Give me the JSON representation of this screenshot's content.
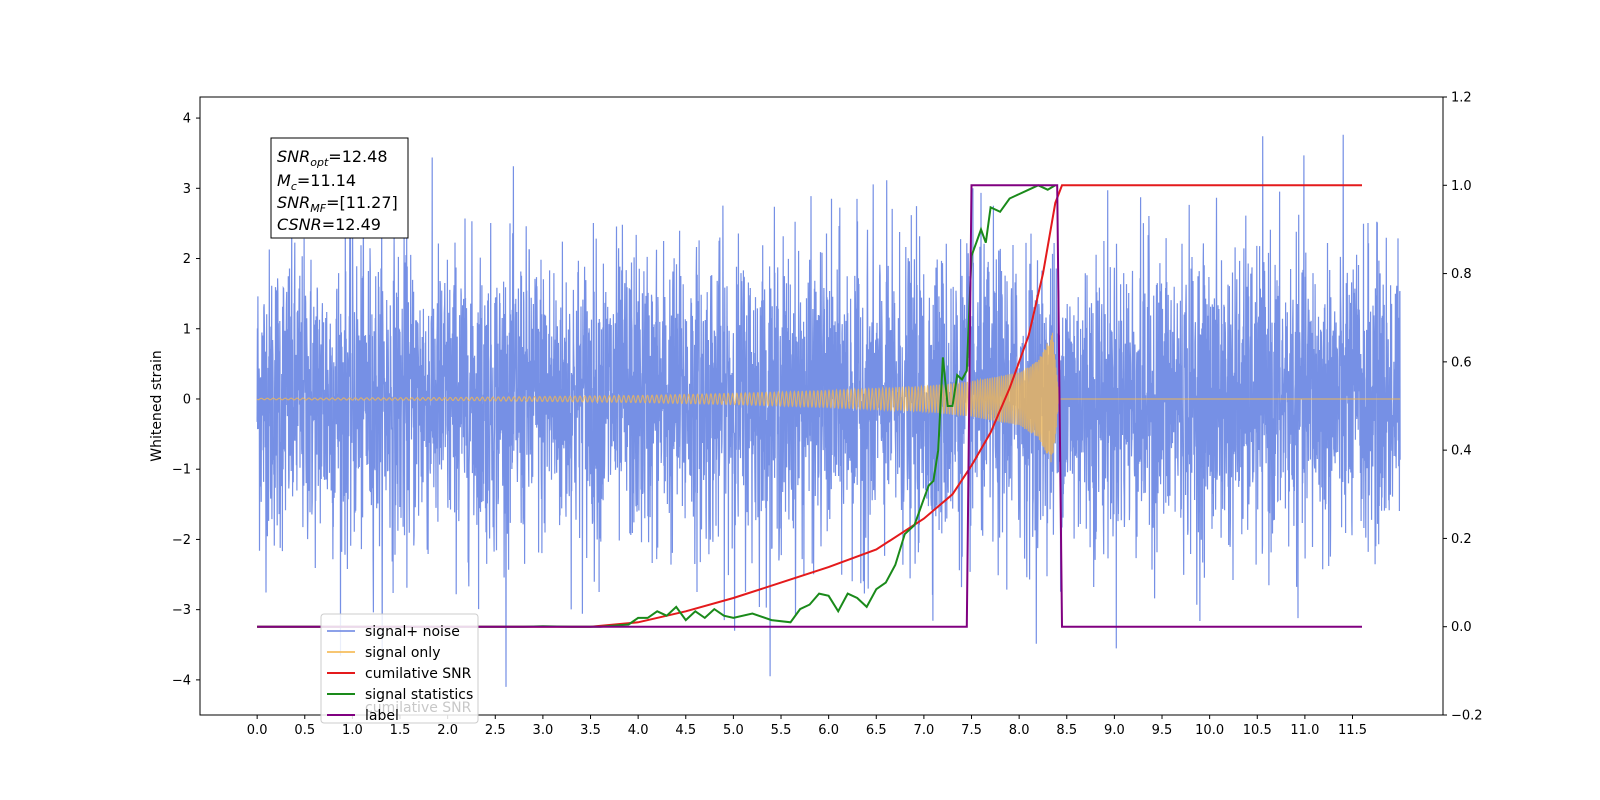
{
  "chart_data": {
    "type": "line",
    "ylabel_left": "Whitened strain",
    "xlim": [
      -0.6,
      12.45
    ],
    "ylim_left": [
      -4.5,
      4.3
    ],
    "ylim_right": [
      -0.2,
      1.2
    ],
    "xticks": [
      "0.0",
      "0.5",
      "1.0",
      "1.5",
      "2.0",
      "2.5",
      "3.0",
      "3.5",
      "4.0",
      "4.5",
      "5.0",
      "5.5",
      "6.0",
      "6.5",
      "7.0",
      "7.5",
      "8.0",
      "8.5",
      "9.0",
      "9.5",
      "10.0",
      "10.5",
      "11.0",
      "11.5"
    ],
    "yticks_left": [
      "4",
      "3",
      "2",
      "1",
      "0",
      "−1",
      "−2",
      "−3",
      "−4"
    ],
    "yticks_right": [
      "1.2",
      "1.0",
      "0.8",
      "0.6",
      "0.4",
      "0.2",
      "0.0",
      "−0.2"
    ],
    "grid": false,
    "legend_position": "lower-left",
    "annotation": {
      "snr_opt_base": "SNR",
      "snr_opt_sub": "opt",
      "snr_opt_value": "=12.48",
      "mc_base": "M",
      "mc_sub": "c",
      "mc_value": "=11.14",
      "snr_mf_base": "SNR",
      "snr_mf_sub": "MF",
      "snr_mf_value": "=[11.27]",
      "csnr_base": "CSNR",
      "csnr_value": "=12.49"
    },
    "series": [
      {
        "name": "signal+ noise",
        "axis": "left",
        "color": "#6f8ae4",
        "description_values": "white noise, std ~1.0, x from 0.0 to 12.0, with spikes up to ~3.9"
      },
      {
        "name": "signal only",
        "axis": "left",
        "color": "#f5b84f",
        "envelope": {
          "x": [
            0.0,
            2.0,
            4.0,
            5.0,
            6.0,
            7.0,
            7.5,
            8.0,
            8.2,
            8.35,
            8.42
          ],
          "amp": [
            0.01,
            0.02,
            0.05,
            0.08,
            0.12,
            0.18,
            0.25,
            0.38,
            0.55,
            0.95,
            0.0
          ]
        }
      },
      {
        "name": "cumilative SNR",
        "axis": "right",
        "color": "#e41a1c",
        "x": [
          0.0,
          3.5,
          4.0,
          4.5,
          5.0,
          5.5,
          6.0,
          6.5,
          7.0,
          7.3,
          7.5,
          7.7,
          7.9,
          8.1,
          8.25,
          8.38,
          8.45,
          11.6
        ],
        "values": [
          0.0,
          0.0,
          0.01,
          0.035,
          0.065,
          0.1,
          0.135,
          0.175,
          0.245,
          0.3,
          0.365,
          0.44,
          0.54,
          0.66,
          0.8,
          0.96,
          1.0,
          1.0
        ]
      },
      {
        "name": "signal statistics",
        "axis": "right",
        "color": "#1a8a1a",
        "x": [
          0.0,
          2.5,
          2.8,
          3.0,
          3.3,
          3.6,
          3.9,
          4.0,
          4.1,
          4.2,
          4.3,
          4.4,
          4.5,
          4.6,
          4.7,
          4.8,
          4.9,
          5.0,
          5.2,
          5.4,
          5.6,
          5.7,
          5.8,
          5.9,
          6.0,
          6.1,
          6.2,
          6.3,
          6.4,
          6.5,
          6.6,
          6.7,
          6.8,
          6.9,
          7.0,
          7.05,
          7.1,
          7.15,
          7.2,
          7.25,
          7.3,
          7.35,
          7.4,
          7.45,
          7.5,
          7.55,
          7.6,
          7.65,
          7.7,
          7.8,
          7.9,
          8.0,
          8.1,
          8.2,
          8.3,
          8.38
        ],
        "values": [
          0.0,
          0.0,
          0.0,
          0.001,
          0.0,
          0.0,
          0.005,
          0.02,
          0.02,
          0.035,
          0.025,
          0.045,
          0.015,
          0.035,
          0.02,
          0.04,
          0.025,
          0.02,
          0.03,
          0.015,
          0.01,
          0.04,
          0.05,
          0.075,
          0.07,
          0.035,
          0.075,
          0.065,
          0.045,
          0.085,
          0.1,
          0.14,
          0.21,
          0.23,
          0.29,
          0.32,
          0.33,
          0.4,
          0.61,
          0.5,
          0.5,
          0.57,
          0.56,
          0.58,
          0.84,
          0.87,
          0.9,
          0.87,
          0.95,
          0.94,
          0.97,
          0.98,
          0.99,
          1.0,
          0.99,
          1.0
        ]
      },
      {
        "name": "label",
        "axis": "right",
        "color": "#800080",
        "x": [
          0.0,
          7.45,
          7.5,
          8.4,
          8.45,
          11.6
        ],
        "values": [
          0.0,
          0.0,
          1.0,
          1.0,
          0.0,
          0.0
        ]
      }
    ],
    "legend_extra_text": "cumilative SNR"
  }
}
